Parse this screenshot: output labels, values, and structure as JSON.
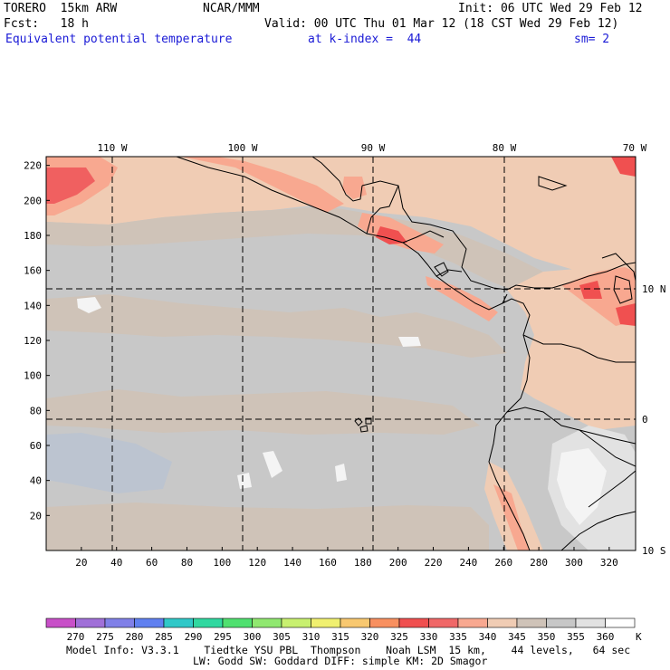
{
  "header": {
    "model": "TORERO  15km ARW",
    "center": "NCAR/MMM",
    "init": "Init: 06 UTC Wed 29 Feb 12",
    "fcst": "Fcst:   18 h",
    "valid": "Valid: 00 UTC Thu 01 Mar 12 (18 CST Wed 29 Feb 12)",
    "field": "Equivalent potential temperature",
    "level": "at k-index =  44",
    "smooth": "sm= 2"
  },
  "axes": {
    "top_lon_labels": [
      "110 W",
      "100 W",
      "90 W",
      "80 W",
      "70 W"
    ],
    "right_lat_labels": [
      "10 N",
      "0",
      "10 S"
    ],
    "left_y_ticks": [
      "220",
      "200",
      "180",
      "160",
      "140",
      "120",
      "100",
      "80",
      "60",
      "40",
      "20"
    ],
    "bottom_x_ticks": [
      "20",
      "40",
      "60",
      "80",
      "100",
      "120",
      "140",
      "160",
      "180",
      "200",
      "220",
      "240",
      "260",
      "280",
      "300",
      "320"
    ]
  },
  "colorbar": {
    "labels": [
      "270",
      "275",
      "280",
      "285",
      "290",
      "295",
      "300",
      "305",
      "310",
      "315",
      "320",
      "325",
      "330",
      "335",
      "340",
      "345",
      "350",
      "355",
      "360"
    ],
    "unit": "K",
    "colors": [
      "#c850c8",
      "#a070d8",
      "#8080e8",
      "#6080f0",
      "#30c8c8",
      "#30d8a0",
      "#50e070",
      "#90e870",
      "#c8f070",
      "#f0f070",
      "#f8c870",
      "#f89060",
      "#f05050",
      "#f06868",
      "#f8a890",
      "#f0ccb4",
      "#cfc3b8",
      "#c7c7c7",
      "#e2e2e2",
      "#ffffff"
    ]
  },
  "footer": {
    "line1": "Model Info: V3.3.1    Tiedtke YSU PBL  Thompson    Noah LSM  15 km,    44 levels,   64 sec",
    "line2": "LW: Godd SW: Goddard DIFF: simple KM: 2D Smagor"
  }
}
